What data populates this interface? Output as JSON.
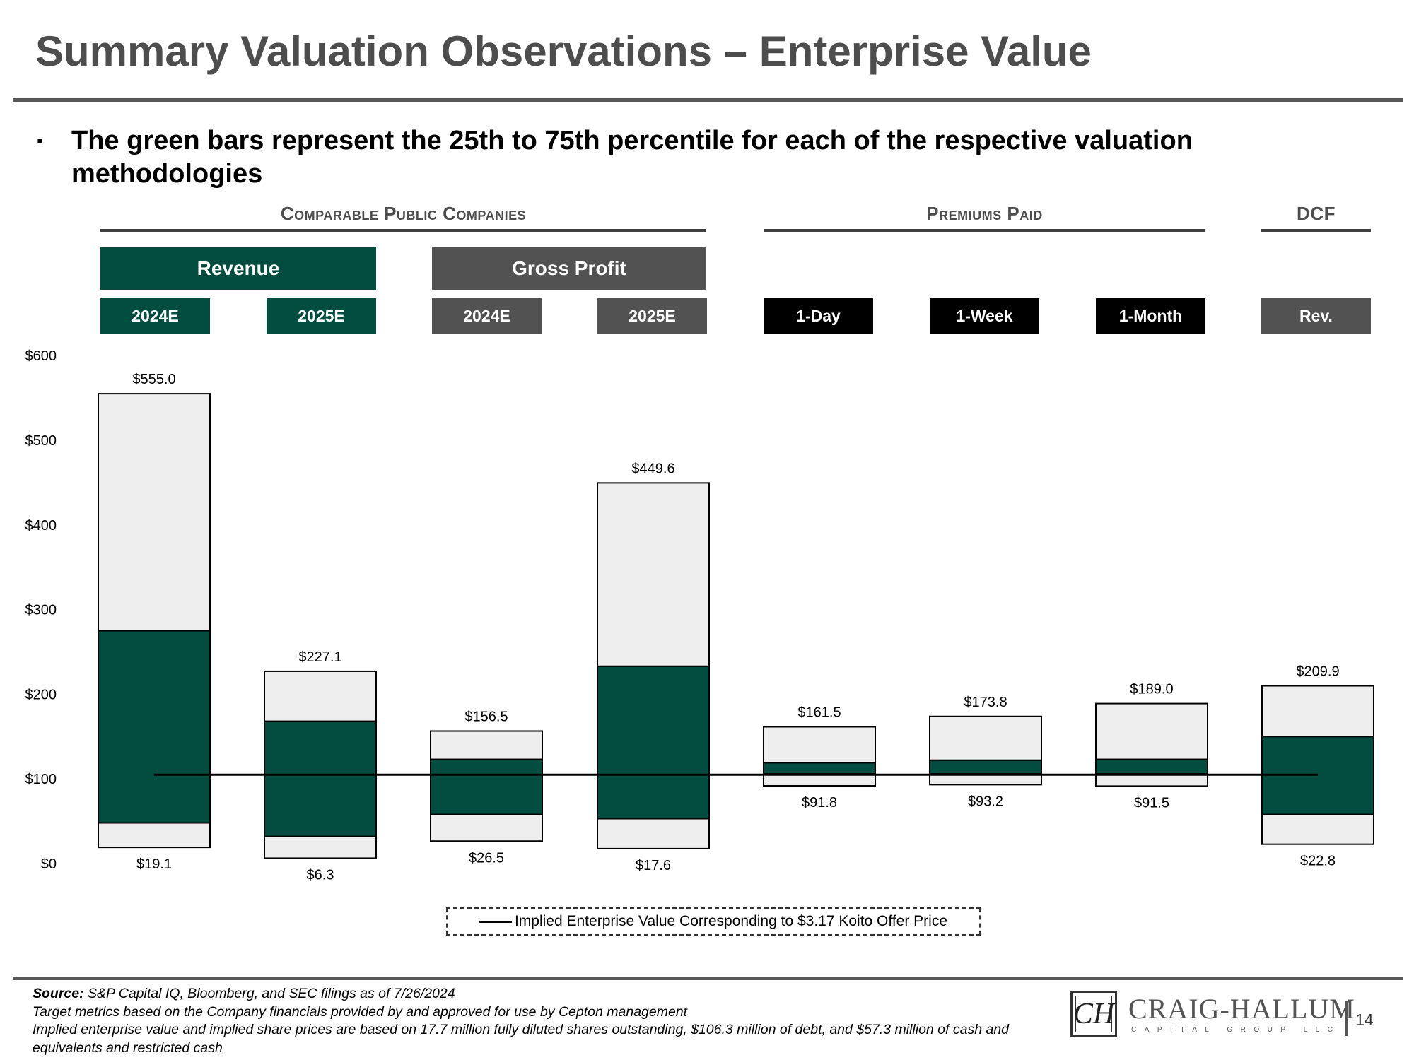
{
  "page": {
    "title": "Summary Valuation Observations – Enterprise Value",
    "bullet_mark": "▪",
    "bullet": "The green bars represent the 25th to 75th percentile for each of the respective valuation methodologies"
  },
  "groups": {
    "comparable": "Comparable Public Companies",
    "premiums": "Premiums Paid",
    "dcf": "DCF"
  },
  "metrics": {
    "revenue": "Revenue",
    "gross_profit": "Gross Profit"
  },
  "periods": [
    "2024E",
    "2025E",
    "2024E",
    "2025E",
    "1-Day",
    "1-Week",
    "1-Month",
    "Rev."
  ],
  "colors": {
    "green": "#034d40",
    "light": "#eeeeee",
    "gray": "#525252",
    "black": "#000000"
  },
  "legend": {
    "label": "Implied Enterprise Value Corresponding to $3.17 Koito Offer Price"
  },
  "chart_data": {
    "type": "bar",
    "subtype": "floating-range",
    "y_unit": "$ millions",
    "ylim": [
      0,
      600
    ],
    "y_ticks": [
      0,
      100,
      200,
      300,
      400,
      500,
      600
    ],
    "y_tick_labels": [
      "$0",
      "$100",
      "$200",
      "$300",
      "$400",
      "$500",
      "$600"
    ],
    "categories": [
      "Revenue 2024E",
      "Revenue 2025E",
      "Gross Profit 2024E",
      "Gross Profit 2025E",
      "1-Day",
      "1-Week",
      "1-Month",
      "DCF Rev."
    ],
    "series": [
      {
        "name": "Low",
        "values": [
          19.1,
          6.3,
          26.5,
          17.6,
          91.8,
          93.2,
          91.5,
          22.8
        ]
      },
      {
        "name": "25th Percentile",
        "values": [
          48,
          32,
          58,
          53,
          106,
          106,
          106,
          58
        ]
      },
      {
        "name": "75th Percentile",
        "values": [
          275,
          168,
          123,
          233,
          119,
          122,
          123,
          150
        ]
      },
      {
        "name": "High",
        "values": [
          555.0,
          227.1,
          156.5,
          449.6,
          161.5,
          173.8,
          189.0,
          209.9
        ]
      }
    ],
    "low_labels": [
      "$19.1",
      "$6.3",
      "$26.5",
      "$17.6",
      "$91.8",
      "$93.2",
      "$91.5",
      "$22.8"
    ],
    "high_labels": [
      "$555.0",
      "$227.1",
      "$156.5",
      "$449.6",
      "$161.5",
      "$173.8",
      "$189.0",
      "$209.9"
    ],
    "reference_line": {
      "name": "Implied Enterprise Value Corresponding to $3.17 Koito Offer Price",
      "value": 105
    }
  },
  "footer": {
    "source_label": "Source:",
    "source_text": " S&P Capital IQ, Bloomberg, and SEC filings as of 7/26/2024",
    "note_1": "Target metrics based on the Company financials provided by and approved for use by Cepton management",
    "note_2": "Implied enterprise value and implied share prices are based on 17.7 million fully diluted shares outstanding, $106.3 million of debt, and $57.3 million of cash and equivalents and restricted cash",
    "logo_mark": "CH",
    "logo_name": "CRAIG-HALLUM",
    "logo_sub": "CAPITAL GROUP LLC",
    "page_number": "14"
  }
}
